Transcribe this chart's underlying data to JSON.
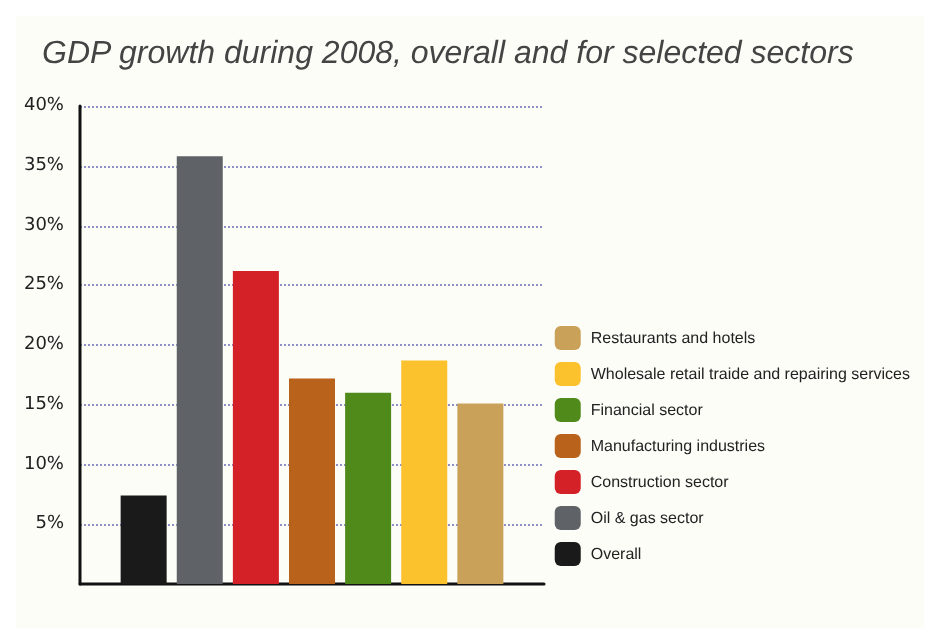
{
  "chart_data": {
    "type": "bar",
    "title": "GDP growth during 2008, overall and for selected sectors",
    "categories": [
      null
    ],
    "series": [
      {
        "name": "Overall",
        "color": "#1a1a1a",
        "values": [
          7.4
        ]
      },
      {
        "name": "Oil & gas sector",
        "color": "#5f6266",
        "values": [
          35.8
        ]
      },
      {
        "name": "Construction sector",
        "color": "#d42027",
        "values": [
          26.2
        ]
      },
      {
        "name": "Manufacturing industries",
        "color": "#b8621c",
        "values": [
          17.2
        ]
      },
      {
        "name": "Financial sector",
        "color": "#4f8a1a",
        "values": [
          16.0
        ]
      },
      {
        "name": "Wholesale retail traide and repairing services",
        "color": "#fcc22e",
        "values": [
          18.7
        ]
      },
      {
        "name": "Restaurants and hotels",
        "color": "#c9a159",
        "values": [
          15.1
        ]
      }
    ],
    "ylim": [
      0,
      40
    ],
    "yticks": [
      {
        "value": 5,
        "label": "5%"
      },
      {
        "value": 10,
        "label": "10%"
      },
      {
        "value": 15,
        "label": "15%"
      },
      {
        "value": 20,
        "label": "20%"
      },
      {
        "value": 25,
        "label": "25%"
      },
      {
        "value": 30,
        "label": "30%"
      },
      {
        "value": 35,
        "label": "35%"
      },
      {
        "value": 40,
        "label": "40%"
      }
    ],
    "grid": "y",
    "legend": "right"
  }
}
